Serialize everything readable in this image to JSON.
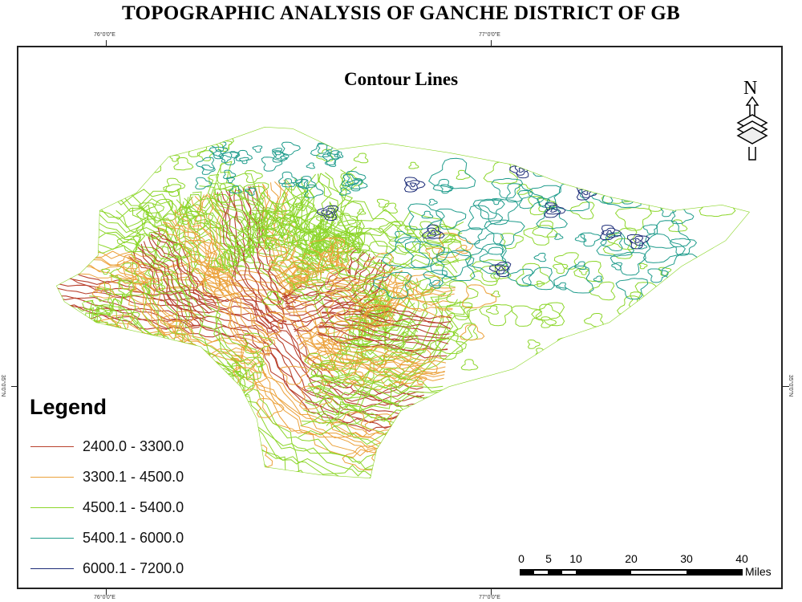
{
  "title": "TOPOGRAPHIC ANALYSIS OF GANCHE DISTRICT OF GB",
  "subtitle": "Contour Lines",
  "graticule": {
    "lon_labels": [
      "76°0'0\"E",
      "77°0'0\"E"
    ],
    "lat_labels": [
      "35°0'0\"N"
    ]
  },
  "legend": {
    "title": "Legend",
    "items": [
      {
        "label": "2400.0 - 3300.0",
        "color": "#b9412e"
      },
      {
        "label": "3300.1 - 4500.0",
        "color": "#eba13a"
      },
      {
        "label": "4500.1 - 5400.0",
        "color": "#8cd62a"
      },
      {
        "label": "5400.1 - 6000.0",
        "color": "#1f9c8c"
      },
      {
        "label": "6000.1 - 7200.0",
        "color": "#1d2d78"
      }
    ]
  },
  "north_arrow": {
    "label": "N",
    "icon": "north-arrow-icon"
  },
  "scale_bar": {
    "ticks": [
      "0",
      "5",
      "10",
      "20",
      "30",
      "40"
    ],
    "unit": "Miles"
  }
}
